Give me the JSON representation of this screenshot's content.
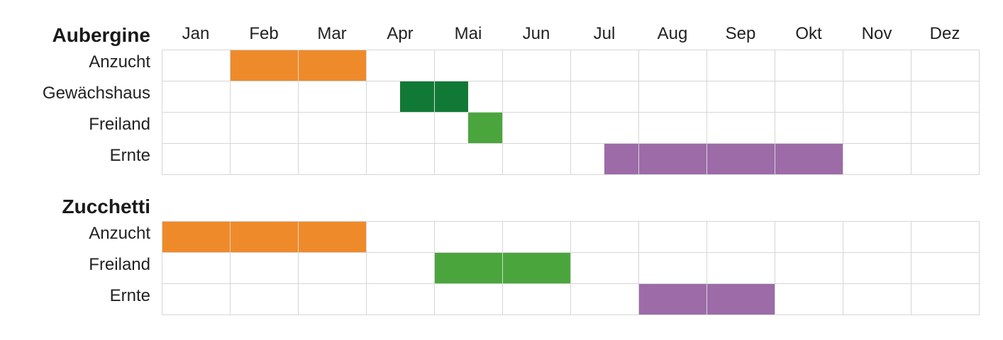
{
  "chart_data": {
    "type": "table",
    "months": [
      "Jan",
      "Feb",
      "Mar",
      "Apr",
      "Mai",
      "Jun",
      "Jul",
      "Aug",
      "Sep",
      "Okt",
      "Nov",
      "Dez"
    ],
    "colors": {
      "Anzucht": "#ef8a2a",
      "Gewächshaus": "#117936",
      "Freiland": "#4aa63c",
      "Ernte": "#9c6ba8"
    },
    "crops": [
      {
        "name": "Aubergine",
        "rows": [
          {
            "label": "Anzucht",
            "start": 1.0,
            "end": 3.0
          },
          {
            "label": "Gewächshaus",
            "start": 3.5,
            "end": 4.5
          },
          {
            "label": "Freiland",
            "start": 4.5,
            "end": 5.0
          },
          {
            "label": "Ernte",
            "start": 6.5,
            "end": 10.0
          }
        ]
      },
      {
        "name": "Zucchetti",
        "rows": [
          {
            "label": "Anzucht",
            "start": 0.0,
            "end": 3.0
          },
          {
            "label": "Freiland",
            "start": 4.0,
            "end": 6.0
          },
          {
            "label": "Ernte",
            "start": 7.0,
            "end": 9.0
          }
        ]
      }
    ]
  }
}
